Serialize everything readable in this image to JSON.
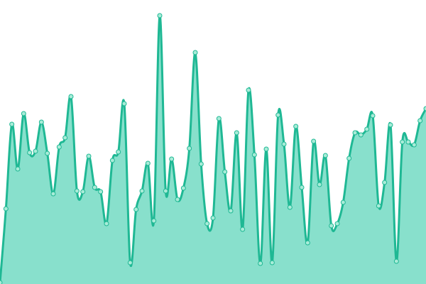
{
  "chart_data": {
    "type": "area",
    "values": [
      2,
      106,
      225,
      162,
      240,
      185,
      187,
      228,
      184,
      127,
      193,
      206,
      264,
      131,
      130,
      180,
      136,
      130,
      85,
      174,
      186,
      254,
      30,
      105,
      131,
      170,
      89,
      378,
      131,
      176,
      119,
      135,
      191,
      326,
      169,
      85,
      93,
      233,
      158,
      103,
      213,
      77,
      273,
      182,
      29,
      190,
      30,
      238,
      197,
      108,
      222,
      136,
      58,
      201,
      140,
      181,
      82,
      85,
      115,
      177,
      213,
      210,
      218,
      237,
      110,
      143,
      224,
      32,
      200,
      200,
      196,
      230,
      247
    ],
    "color": "#1fb894",
    "fill": "#88e0cc",
    "ylim": [
      0,
      400
    ]
  }
}
